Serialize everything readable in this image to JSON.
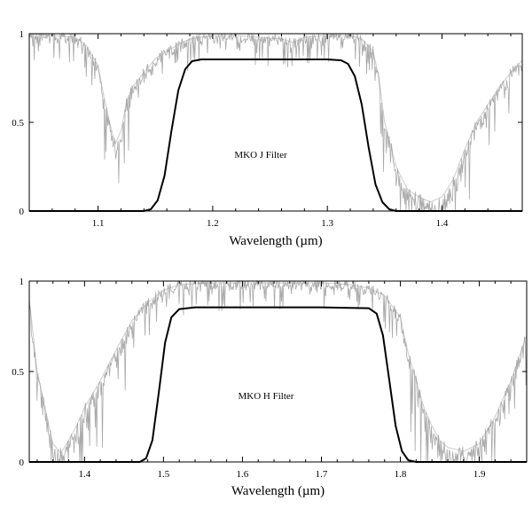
{
  "chart_data": [
    {
      "type": "line",
      "title": "",
      "annotation": "MKO J Filter",
      "xlabel": "Wavelength (µm)",
      "ylabel": "",
      "xlim": [
        1.04,
        1.47
      ],
      "ylim": [
        0,
        1
      ],
      "xticks": [
        "1.1",
        "1.2",
        "1.3",
        "1.4"
      ],
      "yticks": [
        "0",
        "0.5",
        "1"
      ],
      "grid": false,
      "series": [
        {
          "role": "filter-transmission",
          "color": "#000000",
          "x": [
            1.04,
            1.14,
            1.146,
            1.152,
            1.158,
            1.164,
            1.17,
            1.176,
            1.182,
            1.19,
            1.2,
            1.25,
            1.3,
            1.312,
            1.318,
            1.324,
            1.33,
            1.336,
            1.342,
            1.348,
            1.354,
            1.36,
            1.47
          ],
          "y": [
            0,
            0,
            0.01,
            0.06,
            0.2,
            0.45,
            0.68,
            0.8,
            0.845,
            0.855,
            0.855,
            0.855,
            0.855,
            0.85,
            0.83,
            0.76,
            0.6,
            0.36,
            0.15,
            0.05,
            0.01,
            0,
            0
          ]
        },
        {
          "role": "atmospheric-transmission",
          "color": "#9a9a9a",
          "x": [
            1.04,
            1.06,
            1.08,
            1.09,
            1.1,
            1.105,
            1.11,
            1.115,
            1.12,
            1.125,
            1.13,
            1.14,
            1.15,
            1.16,
            1.17,
            1.18,
            1.2,
            1.22,
            1.24,
            1.26,
            1.27,
            1.28,
            1.3,
            1.32,
            1.33,
            1.34,
            1.345,
            1.35,
            1.36,
            1.37,
            1.38,
            1.39,
            1.4,
            1.41,
            1.42,
            1.43,
            1.44,
            1.45,
            1.46,
            1.47
          ],
          "y": [
            1,
            0.99,
            0.98,
            0.93,
            0.82,
            0.65,
            0.5,
            0.38,
            0.45,
            0.62,
            0.7,
            0.78,
            0.86,
            0.9,
            0.94,
            0.97,
            0.99,
            0.99,
            0.98,
            0.97,
            0.95,
            0.98,
            0.99,
            0.99,
            0.97,
            0.9,
            0.75,
            0.5,
            0.25,
            0.12,
            0.08,
            0.05,
            0.08,
            0.18,
            0.35,
            0.5,
            0.6,
            0.7,
            0.78,
            0.85
          ]
        }
      ]
    },
    {
      "type": "line",
      "title": "",
      "annotation": "MKO H Filter",
      "xlabel": "Wavelength (µm)",
      "ylabel": "",
      "xlim": [
        1.33,
        1.96
      ],
      "ylim": [
        0,
        1
      ],
      "xticks": [
        "1.4",
        "1.5",
        "1.6",
        "1.7",
        "1.8",
        "1.9"
      ],
      "yticks": [
        "0",
        "0.5",
        "1"
      ],
      "grid": false,
      "series": [
        {
          "role": "filter-transmission",
          "color": "#000000",
          "x": [
            1.33,
            1.47,
            1.478,
            1.486,
            1.494,
            1.502,
            1.51,
            1.52,
            1.54,
            1.6,
            1.7,
            1.76,
            1.77,
            1.778,
            1.786,
            1.794,
            1.802,
            1.81,
            1.82,
            1.96
          ],
          "y": [
            0,
            0,
            0.02,
            0.12,
            0.38,
            0.66,
            0.8,
            0.845,
            0.855,
            0.855,
            0.855,
            0.85,
            0.82,
            0.7,
            0.45,
            0.2,
            0.06,
            0.01,
            0,
            0
          ]
        },
        {
          "role": "atmospheric-transmission",
          "color": "#9a9a9a",
          "x": [
            1.33,
            1.34,
            1.35,
            1.36,
            1.37,
            1.38,
            1.39,
            1.4,
            1.42,
            1.44,
            1.46,
            1.48,
            1.5,
            1.52,
            1.56,
            1.6,
            1.65,
            1.7,
            1.74,
            1.76,
            1.78,
            1.8,
            1.81,
            1.82,
            1.83,
            1.84,
            1.85,
            1.86,
            1.88,
            1.9,
            1.92,
            1.94,
            1.96
          ],
          "y": [
            0.9,
            0.5,
            0.3,
            0.1,
            0.05,
            0.12,
            0.2,
            0.3,
            0.45,
            0.62,
            0.78,
            0.88,
            0.95,
            0.98,
            0.99,
            0.99,
            0.99,
            0.99,
            0.98,
            0.96,
            0.92,
            0.8,
            0.6,
            0.45,
            0.3,
            0.2,
            0.12,
            0.08,
            0.06,
            0.1,
            0.25,
            0.45,
            0.7
          ]
        }
      ]
    }
  ]
}
